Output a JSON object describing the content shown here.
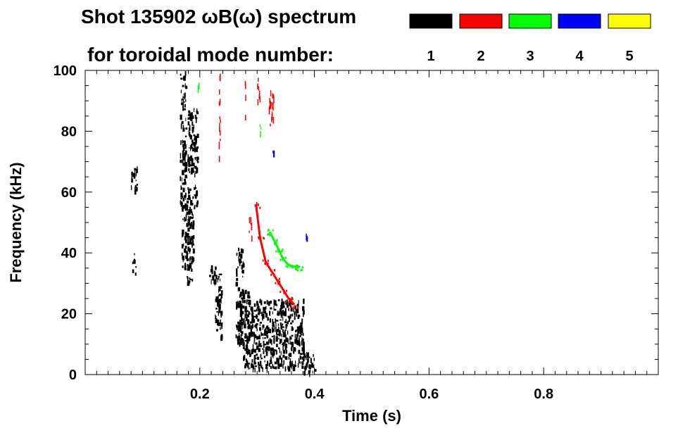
{
  "chart_data": {
    "type": "spectrogram",
    "title_line1": "Shot 135902 ωB(ω) spectrum",
    "title_line2": "for toroidal mode number:",
    "xlabel": "Time (s)",
    "ylabel": "Frequency (kHz)",
    "xlim": [
      0.0,
      1.0
    ],
    "ylim": [
      0,
      100
    ],
    "x_ticks": [
      0.2,
      0.4,
      0.6,
      0.8
    ],
    "x_tick_labels": [
      "0.2",
      "0.4",
      "0.6",
      "0.8"
    ],
    "y_ticks": [
      0,
      20,
      40,
      60,
      80,
      100
    ],
    "y_tick_labels": [
      "0",
      "20",
      "40",
      "60",
      "80",
      "100"
    ],
    "legend": [
      {
        "label": "1",
        "color": "#000000"
      },
      {
        "label": "2",
        "color": "#ff0000"
      },
      {
        "label": "3",
        "color": "#00ff00"
      },
      {
        "label": "4",
        "color": "#0000ff"
      },
      {
        "label": "5",
        "color": "#ffff00"
      }
    ],
    "series": [
      {
        "name": "n=1",
        "color": "#000000",
        "regions": [
          {
            "t": [
              0.078,
              0.09
            ],
            "f": [
              60,
              69
            ]
          },
          {
            "t": [
              0.082,
              0.088
            ],
            "f": [
              33,
              40
            ]
          },
          {
            "t": [
              0.165,
              0.175
            ],
            "f": [
              55,
              100
            ]
          },
          {
            "t": [
              0.168,
              0.182
            ],
            "f": [
              35,
              60
            ]
          },
          {
            "t": [
              0.178,
              0.195
            ],
            "f": [
              55,
              88
            ]
          },
          {
            "t": [
              0.175,
              0.188
            ],
            "f": [
              30,
              55
            ]
          },
          {
            "t": [
              0.215,
              0.228
            ],
            "f": [
              30,
              36
            ]
          },
          {
            "t": [
              0.226,
              0.238
            ],
            "f": [
              12,
              34
            ]
          },
          {
            "t": [
              0.262,
              0.275
            ],
            "f": [
              10,
              42
            ]
          },
          {
            "t": [
              0.27,
              0.285
            ],
            "f": [
              3,
              28
            ]
          },
          {
            "t": [
              0.28,
              0.38
            ],
            "f": [
              2,
              25
            ]
          },
          {
            "t": [
              0.38,
              0.4
            ],
            "f": [
              1,
              8
            ]
          }
        ]
      },
      {
        "name": "n=2",
        "color": "#ff0000",
        "points": [
          {
            "t": 0.298,
            "f": 56
          },
          {
            "t": 0.305,
            "f": 45
          },
          {
            "t": 0.315,
            "f": 37
          },
          {
            "t": 0.325,
            "f": 34
          },
          {
            "t": 0.335,
            "f": 31
          },
          {
            "t": 0.345,
            "f": 28
          },
          {
            "t": 0.355,
            "f": 25
          },
          {
            "t": 0.365,
            "f": 23
          }
        ],
        "streaks": [
          {
            "t": [
              0.233,
              0.235
            ],
            "f": [
              70,
              100
            ]
          },
          {
            "t": [
              0.278,
              0.279
            ],
            "f": [
              82,
              98
            ]
          },
          {
            "t": [
              0.3,
              0.305
            ],
            "f": [
              88,
              98
            ]
          },
          {
            "t": [
              0.32,
              0.33
            ],
            "f": [
              82,
              95
            ]
          },
          {
            "t": [
              0.285,
              0.29
            ],
            "f": [
              45,
              52
            ]
          }
        ]
      },
      {
        "name": "n=3",
        "color": "#00ff00",
        "points": [
          {
            "t": 0.322,
            "f": 47
          },
          {
            "t": 0.33,
            "f": 44
          },
          {
            "t": 0.338,
            "f": 41
          },
          {
            "t": 0.345,
            "f": 38
          },
          {
            "t": 0.355,
            "f": 36
          },
          {
            "t": 0.365,
            "f": 35.5
          },
          {
            "t": 0.375,
            "f": 35.5
          }
        ],
        "streaks": [
          {
            "t": [
              0.304,
              0.306
            ],
            "f": [
              76,
              84
            ]
          },
          {
            "t": [
              0.196,
              0.198
            ],
            "f": [
              94,
              97
            ]
          }
        ]
      },
      {
        "name": "n=4",
        "color": "#0000ff",
        "streaks": [
          {
            "t": [
              0.385,
              0.387
            ],
            "f": [
              45,
              47
            ]
          },
          {
            "t": [
              0.327,
              0.329
            ],
            "f": [
              73,
              74
            ]
          }
        ]
      },
      {
        "name": "n=5",
        "color": "#ffff00",
        "streaks": []
      }
    ]
  }
}
